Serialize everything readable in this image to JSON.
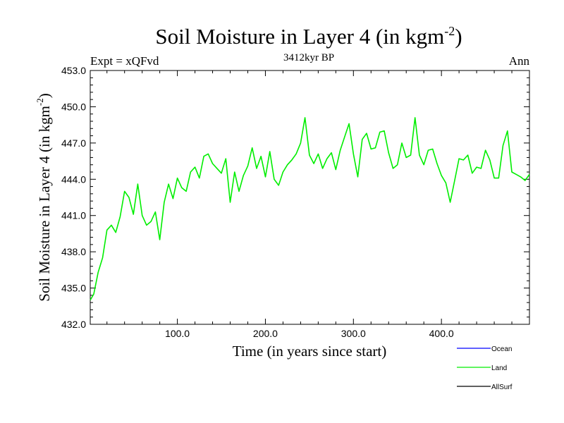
{
  "chart_data": {
    "type": "line",
    "title": "Soil Moisture in Layer 4 (in kgm",
    "title_sup": "-2",
    "title_close": ")",
    "subtitle": "3412kyr BP",
    "left_label": "Expt = xQFvd",
    "right_label": "Ann",
    "xlabel": "Time (in years since start)",
    "ylabel": "Soil Moisture in Layer 4 (in kgm",
    "ylabel_sup": "-2",
    "ylabel_close": ")",
    "xlim": [
      1,
      500
    ],
    "ylim": [
      432.0,
      453.0
    ],
    "xticks": [
      100,
      200,
      300,
      400
    ],
    "xtick_labels": [
      "100.0",
      "200.0",
      "300.0",
      "400.0"
    ],
    "yticks": [
      432,
      435,
      438,
      441,
      444,
      447,
      450,
      453
    ],
    "ytick_labels": [
      "432.0",
      "435.0",
      "438.0",
      "441.0",
      "444.0",
      "447.0",
      "450.0",
      "453.0"
    ],
    "legend": [
      {
        "name": "Ocean",
        "color": "#0000ff"
      },
      {
        "name": "Land",
        "color": "#00ee00"
      },
      {
        "name": "AllSurf",
        "color": "#000000"
      }
    ],
    "series": [
      {
        "name": "Land",
        "color": "#00ee00",
        "x": [
          1,
          5,
          10,
          15,
          20,
          25,
          30,
          35,
          40,
          45,
          50,
          55,
          60,
          65,
          70,
          75,
          80,
          85,
          90,
          95,
          100,
          105,
          110,
          115,
          120,
          125,
          130,
          135,
          140,
          145,
          150,
          155,
          160,
          165,
          170,
          175,
          180,
          185,
          190,
          195,
          200,
          205,
          210,
          215,
          220,
          225,
          230,
          235,
          240,
          245,
          250,
          255,
          260,
          265,
          270,
          275,
          280,
          285,
          290,
          295,
          300,
          305,
          310,
          315,
          320,
          325,
          330,
          335,
          340,
          345,
          350,
          355,
          360,
          365,
          370,
          375,
          380,
          385,
          390,
          395,
          400,
          405,
          410,
          415,
          420,
          425,
          430,
          435,
          440,
          445,
          450,
          455,
          460,
          465,
          470,
          475,
          480,
          485,
          490,
          495,
          500
        ],
        "values": [
          434.0,
          434.5,
          436.3,
          437.5,
          439.8,
          440.2,
          439.6,
          440.9,
          443.0,
          442.5,
          441.1,
          443.6,
          441.0,
          440.2,
          440.5,
          441.3,
          439.0,
          442.1,
          443.6,
          442.4,
          444.1,
          443.3,
          443.0,
          444.6,
          445.0,
          444.1,
          445.9,
          446.1,
          445.3,
          444.9,
          444.5,
          445.7,
          442.1,
          444.6,
          443.0,
          444.3,
          445.1,
          446.6,
          444.9,
          445.9,
          444.2,
          446.3,
          444.0,
          443.5,
          444.6,
          445.2,
          445.6,
          446.1,
          447.0,
          449.1,
          446.0,
          445.3,
          446.1,
          444.9,
          445.7,
          446.2,
          444.8,
          446.4,
          447.5,
          448.6,
          446.1,
          444.2,
          447.3,
          447.8,
          446.5,
          446.6,
          447.9,
          448.0,
          446.2,
          444.9,
          445.2,
          447.0,
          445.8,
          446.0,
          449.1,
          446.0,
          445.2,
          446.4,
          446.5,
          445.3,
          444.3,
          443.7,
          442.1,
          443.9,
          445.7,
          445.6,
          446.0,
          444.5,
          445.0,
          444.9,
          446.4,
          445.6,
          444.1,
          444.1,
          446.8,
          448.0,
          444.6,
          444.4,
          444.2,
          443.9,
          444.4
        ]
      }
    ]
  }
}
